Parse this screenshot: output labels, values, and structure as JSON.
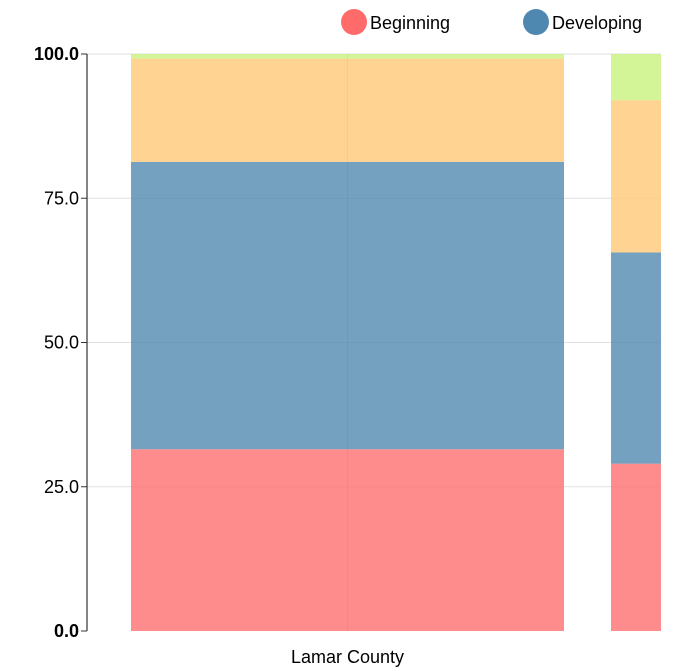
{
  "chart_data": {
    "type": "bar",
    "stacked": true,
    "categories": [
      "Lamar County",
      ""
    ],
    "series": [
      {
        "name": "Beginning",
        "color": "#ff6b6b",
        "values": [
          31.5,
          29.0
        ]
      },
      {
        "name": "Developing",
        "color": "#4e87b0",
        "values": [
          49.8,
          36.6
        ]
      },
      {
        "name": "",
        "color": "#ffc873",
        "values": [
          17.9,
          26.4
        ]
      },
      {
        "name": "",
        "color": "#c8f27a",
        "values": [
          0.8,
          8.0
        ]
      }
    ],
    "legend": {
      "placement": "top-right",
      "entries": [
        "Beginning",
        "Developing"
      ]
    },
    "y_ticks": [
      "0.0",
      "25.0",
      "50.0",
      "75.0",
      "100.0"
    ],
    "y_tick_values": [
      0,
      25,
      50,
      75,
      100
    ],
    "ylim": [
      0,
      100
    ],
    "grid": true,
    "title": "",
    "xlabel": "",
    "ylabel": ""
  }
}
